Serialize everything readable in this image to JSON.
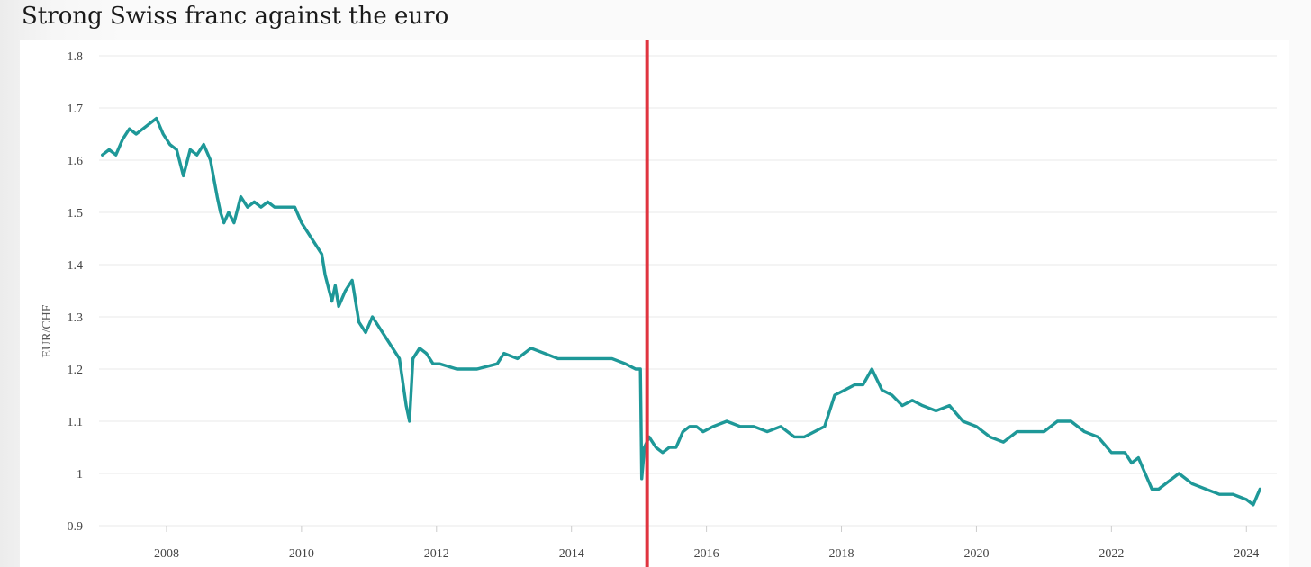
{
  "chart_data": {
    "type": "line",
    "title": "Strong Swiss franc against the euro",
    "ylabel": "EUR/CHF",
    "xlabel": "",
    "ylim": [
      0.9,
      1.8
    ],
    "xlim": [
      2007.0,
      2024.45
    ],
    "yticks": [
      {
        "value": 0.9,
        "label": "0.9"
      },
      {
        "value": 1.0,
        "label": "1"
      },
      {
        "value": 1.1,
        "label": "1.1"
      },
      {
        "value": 1.2,
        "label": "1.2"
      },
      {
        "value": 1.3,
        "label": "1.3"
      },
      {
        "value": 1.4,
        "label": "1.4"
      },
      {
        "value": 1.5,
        "label": "1.5"
      },
      {
        "value": 1.6,
        "label": "1.6"
      },
      {
        "value": 1.7,
        "label": "1.7"
      },
      {
        "value": 1.8,
        "label": "1.8"
      }
    ],
    "xticks": [
      {
        "value": 2008,
        "label": "2008"
      },
      {
        "value": 2010,
        "label": "2010"
      },
      {
        "value": 2012,
        "label": "2012"
      },
      {
        "value": 2014,
        "label": "2014"
      },
      {
        "value": 2016,
        "label": "2016"
      },
      {
        "value": 2018,
        "label": "2018"
      },
      {
        "value": 2020,
        "label": "2020"
      },
      {
        "value": 2022,
        "label": "2022"
      },
      {
        "value": 2024,
        "label": "2024"
      }
    ],
    "grid": true,
    "colors": {
      "series": "#1e9898",
      "marker": "#e0343f",
      "grid": "#e8e8e8"
    },
    "series": [
      {
        "name": "",
        "x": [
          2007.05,
          2007.15,
          2007.25,
          2007.35,
          2007.45,
          2007.55,
          2007.65,
          2007.75,
          2007.85,
          2007.95,
          2008.05,
          2008.15,
          2008.25,
          2008.35,
          2008.45,
          2008.55,
          2008.65,
          2008.75,
          2008.8,
          2008.85,
          2008.92,
          2009.0,
          2009.1,
          2009.2,
          2009.3,
          2009.4,
          2009.5,
          2009.6,
          2009.7,
          2009.8,
          2009.9,
          2010.0,
          2010.1,
          2010.2,
          2010.3,
          2010.35,
          2010.45,
          2010.5,
          2010.55,
          2010.65,
          2010.75,
          2010.85,
          2010.95,
          2011.05,
          2011.15,
          2011.25,
          2011.35,
          2011.45,
          2011.55,
          2011.6,
          2011.65,
          2011.75,
          2011.85,
          2011.95,
          2012.05,
          2012.3,
          2012.6,
          2012.9,
          2013.0,
          2013.2,
          2013.4,
          2013.6,
          2013.8,
          2014.0,
          2014.2,
          2014.4,
          2014.6,
          2014.8,
          2014.95,
          2015.02,
          2015.04,
          2015.08,
          2015.15,
          2015.25,
          2015.35,
          2015.45,
          2015.55,
          2015.65,
          2015.75,
          2015.85,
          2015.95,
          2016.1,
          2016.3,
          2016.5,
          2016.7,
          2016.9,
          2017.1,
          2017.3,
          2017.45,
          2017.6,
          2017.75,
          2017.9,
          2018.05,
          2018.2,
          2018.32,
          2018.45,
          2018.6,
          2018.75,
          2018.9,
          2019.05,
          2019.2,
          2019.4,
          2019.6,
          2019.8,
          2020.0,
          2020.2,
          2020.4,
          2020.6,
          2020.8,
          2021.0,
          2021.2,
          2021.4,
          2021.6,
          2021.8,
          2022.0,
          2022.2,
          2022.3,
          2022.4,
          2022.5,
          2022.6,
          2022.7,
          2022.8,
          2022.9,
          2023.0,
          2023.2,
          2023.4,
          2023.6,
          2023.8,
          2024.0,
          2024.1,
          2024.2
        ],
        "values": [
          1.61,
          1.62,
          1.61,
          1.64,
          1.66,
          1.65,
          1.66,
          1.67,
          1.68,
          1.65,
          1.63,
          1.62,
          1.57,
          1.62,
          1.61,
          1.63,
          1.6,
          1.53,
          1.5,
          1.48,
          1.5,
          1.48,
          1.53,
          1.51,
          1.52,
          1.51,
          1.52,
          1.51,
          1.51,
          1.51,
          1.51,
          1.48,
          1.46,
          1.44,
          1.42,
          1.38,
          1.33,
          1.36,
          1.32,
          1.35,
          1.37,
          1.29,
          1.27,
          1.3,
          1.28,
          1.26,
          1.24,
          1.22,
          1.13,
          1.1,
          1.22,
          1.24,
          1.23,
          1.21,
          1.21,
          1.2,
          1.2,
          1.21,
          1.23,
          1.22,
          1.24,
          1.23,
          1.22,
          1.22,
          1.22,
          1.22,
          1.22,
          1.21,
          1.2,
          1.2,
          0.99,
          1.05,
          1.07,
          1.05,
          1.04,
          1.05,
          1.05,
          1.08,
          1.09,
          1.09,
          1.08,
          1.09,
          1.1,
          1.09,
          1.09,
          1.08,
          1.09,
          1.07,
          1.07,
          1.08,
          1.09,
          1.15,
          1.16,
          1.17,
          1.17,
          1.2,
          1.16,
          1.15,
          1.13,
          1.14,
          1.13,
          1.12,
          1.13,
          1.1,
          1.09,
          1.07,
          1.06,
          1.08,
          1.08,
          1.08,
          1.1,
          1.1,
          1.08,
          1.07,
          1.04,
          1.04,
          1.02,
          1.03,
          1.0,
          0.97,
          0.97,
          0.98,
          0.99,
          1.0,
          0.98,
          0.97,
          0.96,
          0.96,
          0.95,
          0.94,
          0.97
        ]
      }
    ],
    "vertical_marker": {
      "x": 2015.12
    }
  }
}
